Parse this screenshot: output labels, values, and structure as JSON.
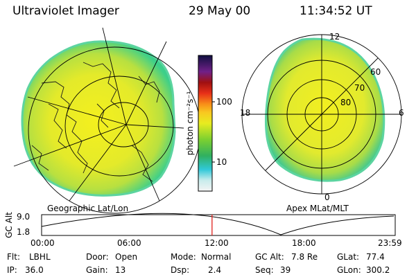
{
  "header": {
    "title": "Ultraviolet Imager",
    "date": "29 May 00",
    "time": "11:34:52 UT"
  },
  "colorbar": {
    "unit_label": "photon cm⁻²s⁻¹",
    "ticks": [
      "100",
      "10"
    ]
  },
  "geo_panel": {
    "label": "Geographic Lat/Lon"
  },
  "polar_panel": {
    "label": "Apex MLat/MLT",
    "mlt_labels": [
      "12",
      "18",
      "6",
      "0"
    ],
    "lat_labels": [
      "60",
      "70",
      "80"
    ]
  },
  "altitude_plot": {
    "axis_label": "GC Alt",
    "y_ticks": [
      "9.0",
      "1.8"
    ],
    "x_ticks": [
      "00:00",
      "06:00",
      "12:00",
      "18:00",
      "23:59"
    ],
    "current_time_fraction": 0.482
  },
  "info": {
    "filter_label": "Flt:",
    "filter_value": "LBHL",
    "door_label": "Door:",
    "door_value": "Open",
    "mode_label": "Mode:",
    "mode_value": "Normal",
    "gcalt_label": "GC Alt:",
    "gcalt_value": "7.8 Re",
    "glat_label": "GLat:",
    "glat_value": "77.4",
    "ip_label": "IP:",
    "ip_value": "36.0",
    "gain_label": "Gain:",
    "gain_value": "13",
    "dsp_label": "Dsp:",
    "dsp_value": "2.4",
    "seq_label": "Seq:",
    "seq_value": "39",
    "glon_label": "GLon:",
    "glon_value": "300.2"
  },
  "colors": {
    "image_fill": "#e6ec2a",
    "image_edge": "#4fd07a",
    "marker": "#e0201c"
  }
}
